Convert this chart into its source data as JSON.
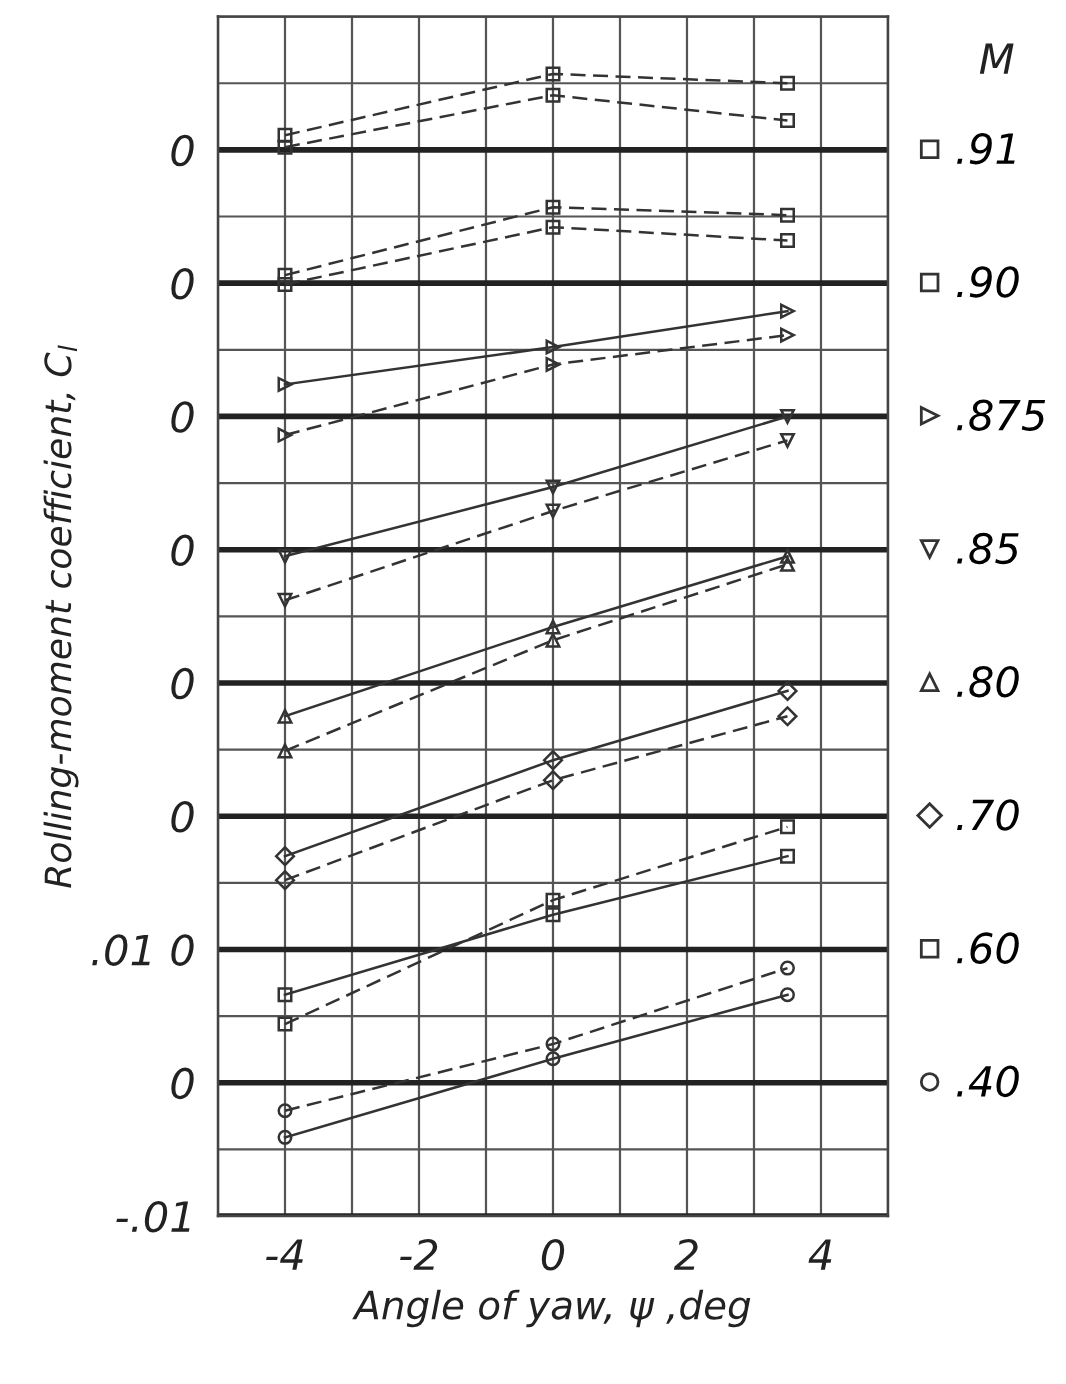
{
  "chart_data": {
    "type": "line",
    "xlabel": "Angle of yaw, ψ ,deg",
    "ylabel": "Rolling-moment coefficient, C$_{l}$",
    "legend_title": "M",
    "legend": "right",
    "grid": true,
    "xlim": [
      -5,
      5
    ],
    "xticks": [
      {
        "value": -5,
        "label": null
      },
      -4,
      {
        "value": -3,
        "label": null
      },
      -2,
      {
        "value": -1,
        "label": null
      },
      0,
      {
        "value": 1,
        "label": null
      },
      2,
      {
        "value": 3,
        "label": null
      },
      4,
      {
        "value": 5,
        "label": null
      }
    ],
    "ylim": [
      -0.01,
      0.08
    ],
    "yticks": [
      {
        "value": -0.01,
        "label": "-.01"
      },
      {
        "value": -0.005,
        "label": null
      },
      {
        "value": 0,
        "label": "0"
      },
      {
        "value": 0.005,
        "label": null
      },
      {
        "value": 0.01,
        "label": ".01 0"
      },
      {
        "value": 0.015,
        "label": null
      },
      {
        "value": 0.02,
        "label": "0"
      },
      {
        "value": 0.025,
        "label": null
      },
      {
        "value": 0.03,
        "label": "0"
      },
      {
        "value": 0.035,
        "label": null
      },
      {
        "value": 0.04,
        "label": "0"
      },
      {
        "value": 0.045,
        "label": null
      },
      {
        "value": 0.05,
        "label": "0"
      },
      {
        "value": 0.055,
        "label": null
      },
      {
        "value": 0.06,
        "label": "0"
      },
      {
        "value": 0.065,
        "label": null
      },
      {
        "value": 0.07,
        "label": "0"
      },
      {
        "value": 0.075,
        "label": null
      },
      {
        "value": 0.08,
        "label": null
      }
    ],
    "x": [
      -4,
      0,
      3.5
    ],
    "series": [
      {
        "name": ".91",
        "color": "#333333",
        "marker": "square",
        "line_style": "dashed",
        "values": [
          0.0711,
          0.0757,
          0.075
        ]
      },
      {
        "color": "#333333",
        "marker": "square",
        "line_style": "dashed",
        "values": [
          0.0702,
          0.0741,
          0.0722
        ]
      },
      {
        "name": ".90",
        "color": "#333333",
        "marker": "square",
        "line_style": "dashed",
        "values": [
          0.0606,
          0.0657,
          0.0651
        ]
      },
      {
        "color": "#333333",
        "marker": "square",
        "line_style": "dashed",
        "values": [
          0.0599,
          0.0642,
          0.0632
        ]
      },
      {
        "name": ".875",
        "color": "#333333",
        "marker": "triangle_right",
        "line_style": "solid",
        "values": [
          0.0524,
          0.0552,
          0.0579
        ]
      },
      {
        "color": "#333333",
        "marker": "triangle_right",
        "line_style": "dashed",
        "values": [
          0.0486,
          0.0539,
          0.0561
        ]
      },
      {
        "name": ".85",
        "color": "#333333",
        "marker": "triangle_down",
        "line_style": "solid",
        "values": [
          0.0395,
          0.0447,
          0.05
        ]
      },
      {
        "color": "#333333",
        "marker": "triangle_down",
        "line_style": "dashed",
        "values": [
          0.0362,
          0.0429,
          0.0482
        ]
      },
      {
        "name": ".80",
        "color": "#333333",
        "marker": "triangle",
        "line_style": "solid",
        "values": [
          0.0275,
          0.0342,
          0.0395
        ]
      },
      {
        "color": "#333333",
        "marker": "triangle",
        "line_style": "dashed",
        "values": [
          0.0249,
          0.0332,
          0.0389
        ]
      },
      {
        "name": ".70",
        "color": "#333333",
        "marker": "diamond",
        "line_style": "solid",
        "values": [
          0.017,
          0.0242,
          0.0294
        ]
      },
      {
        "color": "#333333",
        "marker": "diamond",
        "line_style": "dashed",
        "values": [
          0.0152,
          0.0227,
          0.0275
        ]
      },
      {
        "name": ".60",
        "color": "#333333",
        "marker": "square",
        "line_style": "solid",
        "values": [
          0.0066,
          0.0126,
          0.017
        ]
      },
      {
        "color": "#333333",
        "marker": "square",
        "line_style": "dashed",
        "values": [
          0.0044,
          0.0137,
          0.0192
        ]
      },
      {
        "name": ".40",
        "color": "#333333",
        "marker": "circle",
        "line_style": "dashed",
        "values": [
          -0.0021,
          0.0029,
          0.0086
        ]
      },
      {
        "color": "#333333",
        "marker": "circle",
        "line_style": "solid",
        "values": [
          -0.0041,
          0.0018,
          0.0066
        ]
      }
    ]
  }
}
